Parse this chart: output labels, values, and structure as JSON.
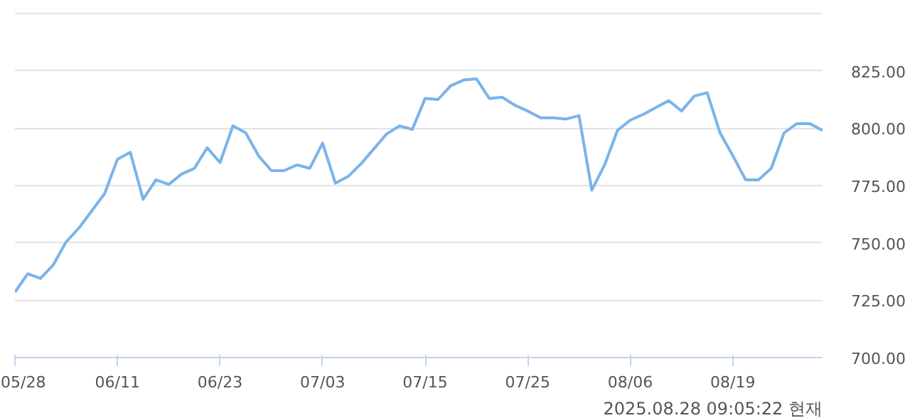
{
  "chart_data": {
    "type": "line",
    "categories": [
      "05/28",
      null,
      null,
      null,
      null,
      null,
      null,
      null,
      "06/11",
      null,
      null,
      null,
      null,
      null,
      null,
      null,
      "06/23",
      null,
      null,
      null,
      null,
      null,
      null,
      null,
      "07/03",
      null,
      null,
      null,
      null,
      null,
      null,
      null,
      "07/15",
      null,
      null,
      null,
      null,
      null,
      null,
      null,
      "07/25",
      null,
      null,
      null,
      null,
      null,
      null,
      null,
      "08/06",
      null,
      null,
      null,
      null,
      null,
      null,
      null,
      "08/19",
      null,
      null,
      null,
      null,
      null,
      null,
      null
    ],
    "series": [
      {
        "color": "#7ab4ea",
        "values": [
          728.5,
          736.5,
          734.5,
          740.5,
          750.5,
          756.5,
          764,
          771.5,
          786.5,
          789.5,
          769,
          777.5,
          775.5,
          780,
          782.5,
          791.5,
          785,
          801,
          798,
          788,
          781.5,
          781.5,
          784,
          782.5,
          793.5,
          776,
          779,
          784.5,
          791,
          797.5,
          801,
          799.5,
          813,
          812.5,
          818.5,
          821,
          821.5,
          813,
          813.5,
          810,
          807.5,
          804.5,
          804.5,
          804,
          805.5,
          773,
          784,
          799,
          803.5,
          806,
          809,
          812,
          807.5,
          814,
          815.5,
          798,
          788,
          777.5,
          777.5,
          782.5,
          798,
          802,
          802,
          799
        ]
      }
    ],
    "ylim": [
      700,
      850
    ],
    "yticks": [
      {
        "value": 700,
        "label": "700.00"
      },
      {
        "value": 725,
        "label": "725.00"
      },
      {
        "value": 750,
        "label": "750.00"
      },
      {
        "value": 775,
        "label": "775.00"
      },
      {
        "value": 800,
        "label": "800.00"
      },
      {
        "value": 825,
        "label": "825.00"
      },
      {
        "value": 850,
        "label": null
      }
    ],
    "grid": "y",
    "annotations": [
      "2025.08.28 09:05:22 현재"
    ]
  }
}
